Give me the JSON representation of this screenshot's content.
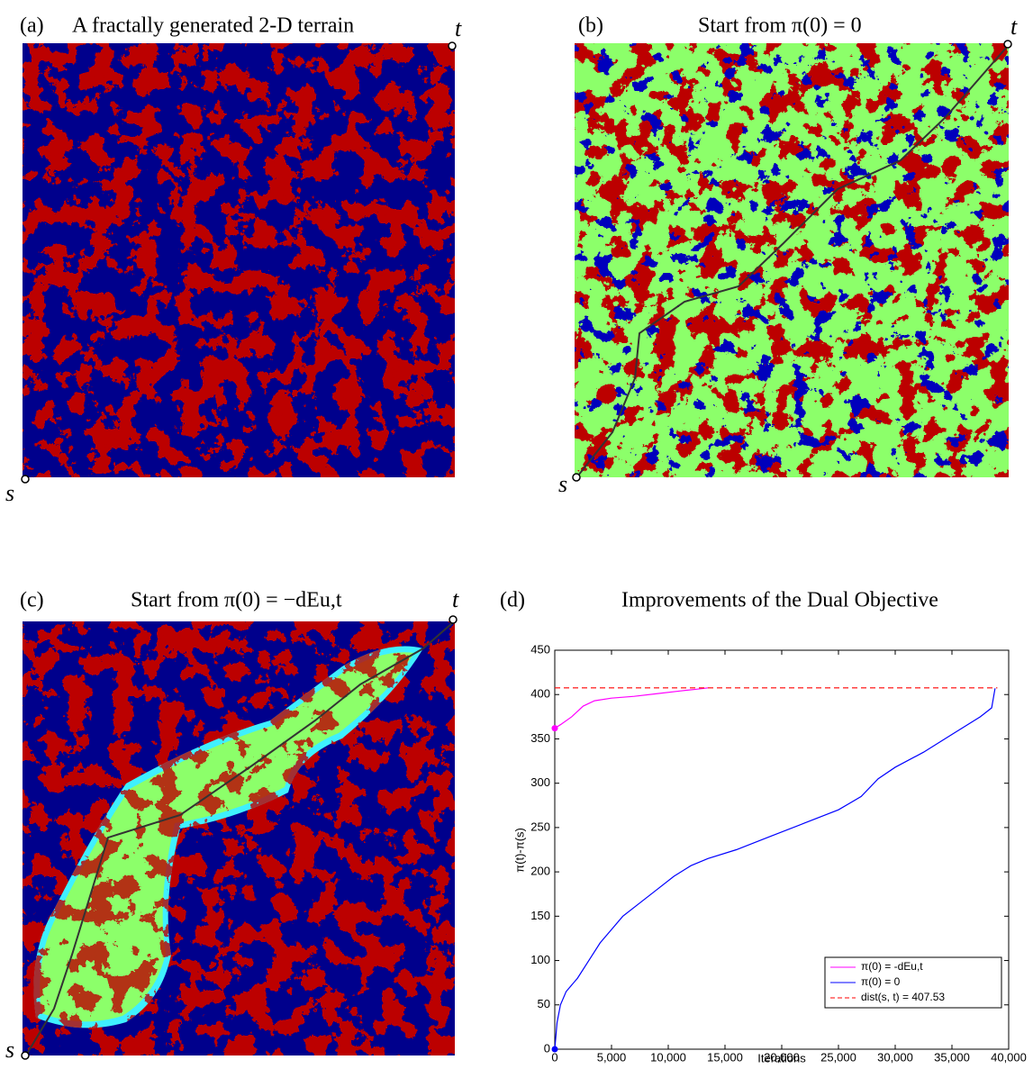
{
  "panels": [
    {
      "label": "(a)",
      "title": "A fractally generated 2-D terrain",
      "s": "s",
      "t": "t"
    },
    {
      "label": "(b)",
      "title": "Start from π(0) = 0",
      "s": "s",
      "t": "t"
    },
    {
      "label": "(c)",
      "title": "Start from π(0) = −dEu,t",
      "s": "s",
      "t": "t"
    }
  ],
  "chart_data": {
    "type": "line",
    "label": "(d)",
    "title": "Improvements of the Dual Objective",
    "x_label": "Iterations",
    "y_label": "π(t)-π(s)",
    "xlim": [
      0,
      40000
    ],
    "ylim": [
      0,
      450
    ],
    "xticks": [
      0,
      {
        "value": 5000,
        "label": "5,000"
      },
      {
        "value": 10000,
        "label": "10,000"
      },
      {
        "value": 15000,
        "label": "15,000"
      },
      {
        "value": 20000,
        "label": "20,000"
      },
      {
        "value": 25000,
        "label": "25,000"
      },
      {
        "value": 30000,
        "label": "30,000"
      },
      {
        "value": 35000,
        "label": "35,000"
      },
      {
        "value": 40000,
        "label": "40,000"
      }
    ],
    "yticks": [
      0,
      50,
      100,
      150,
      200,
      250,
      300,
      350,
      400,
      450
    ],
    "legend": "lower right",
    "series": [
      {
        "name": "π(0) = -dEu,t",
        "color": "#ff00ff",
        "style": "solid",
        "x": [
          0,
          500,
          1500,
          2500,
          3500,
          5000,
          7000,
          9000,
          11000,
          12500,
          13500
        ],
        "values": [
          362,
          366,
          375,
          387,
          393,
          396,
          398,
          401,
          404,
          406,
          407.5
        ]
      },
      {
        "name": "π(0) = 0",
        "color": "#0000ff",
        "style": "solid",
        "x": [
          0,
          200,
          500,
          1000,
          2000,
          3000,
          4000,
          5000,
          6000,
          7500,
          9000,
          10500,
          12000,
          13500,
          16000,
          19000,
          22000,
          25000,
          27000,
          28500,
          30000,
          32500,
          35000,
          37500,
          38500,
          38800
        ],
        "values": [
          0,
          30,
          50,
          65,
          80,
          100,
          120,
          135,
          150,
          165,
          180,
          195,
          207,
          215,
          225,
          240,
          255,
          270,
          285,
          305,
          318,
          335,
          355,
          375,
          385,
          407
        ]
      },
      {
        "name": "dist(s, t) = 407.53",
        "color": "#ff0000",
        "style": "dashed",
        "x": [
          0,
          39000
        ],
        "values": [
          407.53,
          407.53
        ]
      }
    ]
  }
}
